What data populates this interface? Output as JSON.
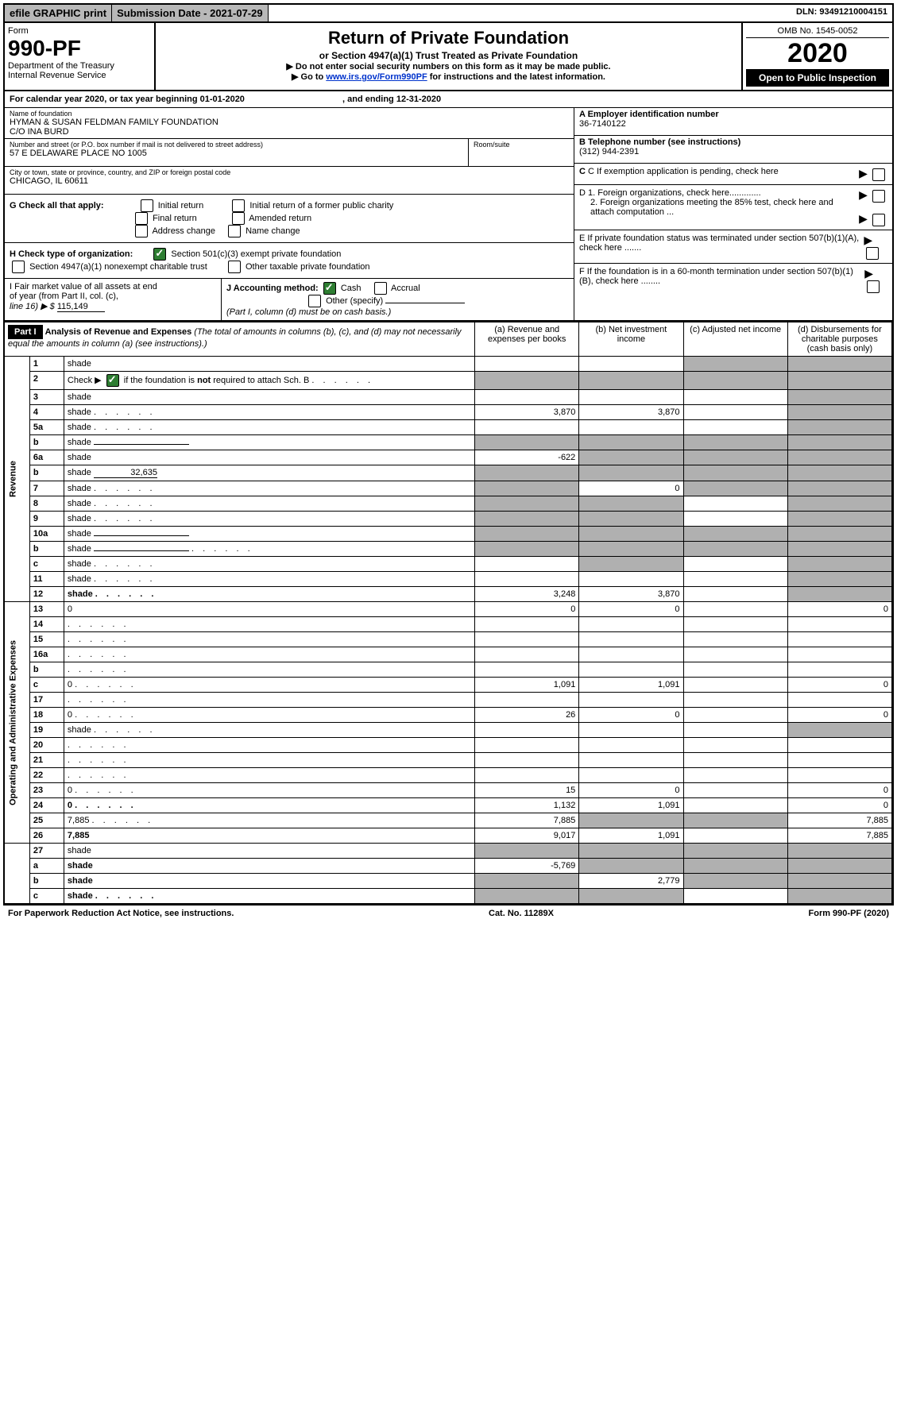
{
  "top": {
    "efile": "efile GRAPHIC print",
    "submission": "Submission Date - 2021-07-29",
    "dln": "DLN: 93491210004151"
  },
  "header": {
    "form_label": "Form",
    "form_no": "990-PF",
    "dept": "Department of the Treasury",
    "irs": "Internal Revenue Service",
    "title": "Return of Private Foundation",
    "subtitle": "or Section 4947(a)(1) Trust Treated as Private Foundation",
    "inst1": "▶ Do not enter social security numbers on this form as it may be made public.",
    "inst2_pre": "▶ Go to ",
    "inst2_link": "www.irs.gov/Form990PF",
    "inst2_post": " for instructions and the latest information.",
    "omb": "OMB No. 1545-0052",
    "year": "2020",
    "open": "Open to Public Inspection"
  },
  "cal_year": {
    "pre": "For calendar year 2020, or tax year beginning ",
    "begin": "01-01-2020",
    "mid": " , and ending ",
    "end": "12-31-2020"
  },
  "info": {
    "name_label": "Name of foundation",
    "name1": "HYMAN & SUSAN FELDMAN FAMILY FOUNDATION",
    "name2": "C/O INA BURD",
    "addr_label": "Number and street (or P.O. box number if mail is not delivered to street address)",
    "addr": "57 E DELAWARE PLACE NO 1005",
    "room_label": "Room/suite",
    "city_label": "City or town, state or province, country, and ZIP or foreign postal code",
    "city": "CHICAGO, IL  60611",
    "a_label": "A Employer identification number",
    "a_val": "36-7140122",
    "b_label": "B Telephone number (see instructions)",
    "b_val": "(312) 944-2391",
    "c_label": "C If exemption application is pending, check here",
    "d1": "D 1. Foreign organizations, check here.............",
    "d2": "2. Foreign organizations meeting the 85% test, check here and attach computation ...",
    "e": "E  If private foundation status was terminated under section 507(b)(1)(A), check here .......",
    "f": "F  If the foundation is in a 60-month termination under section 507(b)(1)(B), check here ........"
  },
  "g": {
    "label": "G Check all that apply:",
    "o1": "Initial return",
    "o2": "Initial return of a former public charity",
    "o3": "Final return",
    "o4": "Amended return",
    "o5": "Address change",
    "o6": "Name change"
  },
  "h": {
    "label": "H Check type of organization:",
    "o1": "Section 501(c)(3) exempt private foundation",
    "o2": "Section 4947(a)(1) nonexempt charitable trust",
    "o3": "Other taxable private foundation"
  },
  "i": {
    "label1": "I Fair market value of all assets at end",
    "label2": "of year (from Part II, col. (c),",
    "label3_pre": "line 16) ▶ $ ",
    "val": "115,149"
  },
  "j": {
    "label": "J Accounting method:",
    "cash": "Cash",
    "accrual": "Accrual",
    "other": "Other (specify)",
    "note": "(Part I, column (d) must be on cash basis.)"
  },
  "part1": {
    "label": "Part I",
    "title": "Analysis of Revenue and Expenses",
    "sub": "(The total of amounts in columns (b), (c), and (d) may not necessarily equal the amounts in column (a) (see instructions).)",
    "col_a": "Revenue and expenses per books",
    "col_b": "Net investment income",
    "col_c": "Adjusted net income",
    "col_d": "Disbursements for charitable purposes (cash basis only)",
    "col_a_pre": "(a)",
    "col_b_pre": "(b)",
    "col_c_pre": "(c)",
    "col_d_pre": "(d)"
  },
  "sections": {
    "revenue": "Revenue",
    "opex": "Operating and Administrative Expenses"
  },
  "rows": [
    {
      "n": "1",
      "d": "shade",
      "a": "",
      "b": "",
      "c": "shade"
    },
    {
      "n": "2",
      "d": "shade",
      "a": "shade",
      "b": "shade",
      "c": "shade",
      "checked": true,
      "dots": true
    },
    {
      "n": "3",
      "d": "shade",
      "a": "",
      "b": "",
      "c": ""
    },
    {
      "n": "4",
      "d": "shade",
      "a": "3,870",
      "b": "3,870",
      "c": "",
      "dots": true
    },
    {
      "n": "5a",
      "d": "shade",
      "a": "",
      "b": "",
      "c": "",
      "dots": true
    },
    {
      "n": "b",
      "d": "shade",
      "a": "shade",
      "b": "shade",
      "c": "shade",
      "blank": true
    },
    {
      "n": "6a",
      "d": "shade",
      "a": "-622",
      "b": "shade",
      "c": "shade"
    },
    {
      "n": "b",
      "d": "shade",
      "a": "shade",
      "b": "shade",
      "c": "shade",
      "inline_val": "32,635"
    },
    {
      "n": "7",
      "d": "shade",
      "a": "shade",
      "b": "0",
      "c": "shade",
      "dots": true
    },
    {
      "n": "8",
      "d": "shade",
      "a": "shade",
      "b": "shade",
      "c": "",
      "dots": true
    },
    {
      "n": "9",
      "d": "shade",
      "a": "shade",
      "b": "shade",
      "c": "",
      "dots": true
    },
    {
      "n": "10a",
      "d": "shade",
      "a": "shade",
      "b": "shade",
      "c": "shade",
      "blank": true
    },
    {
      "n": "b",
      "d": "shade",
      "a": "shade",
      "b": "shade",
      "c": "shade",
      "blank": true,
      "dots": true
    },
    {
      "n": "c",
      "d": "shade",
      "a": "",
      "b": "shade",
      "c": "",
      "dots": true
    },
    {
      "n": "11",
      "d": "shade",
      "a": "",
      "b": "",
      "c": "",
      "dots": true
    },
    {
      "n": "12",
      "d": "shade",
      "a": "3,248",
      "b": "3,870",
      "c": "",
      "bold": true,
      "dots": true
    }
  ],
  "exp_rows": [
    {
      "n": "13",
      "d": "0",
      "a": "0",
      "b": "0",
      "c": ""
    },
    {
      "n": "14",
      "d": "",
      "a": "",
      "b": "",
      "c": "",
      "dots": true
    },
    {
      "n": "15",
      "d": "",
      "a": "",
      "b": "",
      "c": "",
      "dots": true
    },
    {
      "n": "16a",
      "d": "",
      "a": "",
      "b": "",
      "c": "",
      "dots": true
    },
    {
      "n": "b",
      "d": "",
      "a": "",
      "b": "",
      "c": "",
      "dots": true
    },
    {
      "n": "c",
      "d": "0",
      "a": "1,091",
      "b": "1,091",
      "c": "",
      "dots": true
    },
    {
      "n": "17",
      "d": "",
      "a": "",
      "b": "",
      "c": "",
      "dots": true
    },
    {
      "n": "18",
      "d": "0",
      "a": "26",
      "b": "0",
      "c": "",
      "dots": true
    },
    {
      "n": "19",
      "d": "shade",
      "a": "",
      "b": "",
      "c": "",
      "dots": true
    },
    {
      "n": "20",
      "d": "",
      "a": "",
      "b": "",
      "c": "",
      "dots": true
    },
    {
      "n": "21",
      "d": "",
      "a": "",
      "b": "",
      "c": "",
      "dots": true
    },
    {
      "n": "22",
      "d": "",
      "a": "",
      "b": "",
      "c": "",
      "dots": true
    },
    {
      "n": "23",
      "d": "0",
      "a": "15",
      "b": "0",
      "c": "",
      "dots": true
    },
    {
      "n": "24",
      "d": "0",
      "a": "1,132",
      "b": "1,091",
      "c": "",
      "bold": true,
      "dots": true
    },
    {
      "n": "25",
      "d": "7,885",
      "a": "7,885",
      "b": "shade",
      "c": "shade",
      "dots": true
    },
    {
      "n": "26",
      "d": "7,885",
      "a": "9,017",
      "b": "1,091",
      "c": "",
      "bold": true
    }
  ],
  "final_rows": [
    {
      "n": "27",
      "d": "shade",
      "a": "shade",
      "b": "shade",
      "c": "shade"
    },
    {
      "n": "a",
      "d": "shade",
      "a": "-5,769",
      "b": "shade",
      "c": "shade",
      "bold": true
    },
    {
      "n": "b",
      "d": "shade",
      "a": "shade",
      "b": "2,779",
      "c": "shade",
      "bold": true
    },
    {
      "n": "c",
      "d": "shade",
      "a": "shade",
      "b": "shade",
      "c": "",
      "bold": true,
      "dots": true
    }
  ],
  "footer": {
    "left": "For Paperwork Reduction Act Notice, see instructions.",
    "mid": "Cat. No. 11289X",
    "right": "Form 990-PF (2020)"
  }
}
